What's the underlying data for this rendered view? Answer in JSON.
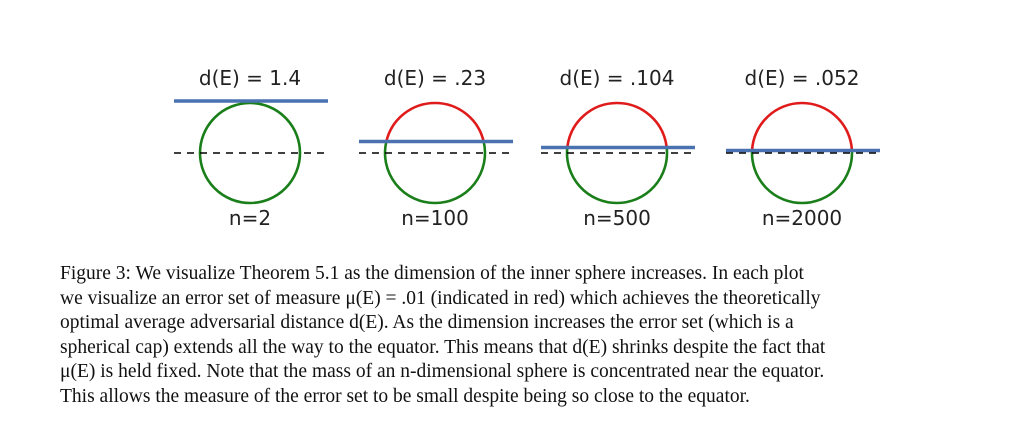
{
  "figure": {
    "panels": [
      {
        "title": "d(E) = 1.4",
        "label": "n=2",
        "cap_fraction": 0,
        "distance": 1.4
      },
      {
        "title": "d(E) = .23",
        "label": "n=100",
        "cap_fraction": 0.385,
        "distance": 0.23
      },
      {
        "title": "d(E) = .104",
        "label": "n=500",
        "cap_fraction": 0.445,
        "distance": 0.104
      },
      {
        "title": "d(E) = .052",
        "label": "n=2000",
        "cap_fraction": 0.475,
        "distance": 0.052
      }
    ],
    "colors": {
      "safe_arc": "#1a7f1a",
      "error_arc": "#e01b1b",
      "boundary": "#4a72b0",
      "equator": "#000000"
    }
  },
  "caption": {
    "lines": [
      "Figure 3: We visualize Theorem 5.1 as the dimension of the inner sphere increases. In each plot",
      "we visualize an error set of measure μ(E) = .01 (indicated in red) which achieves the theoretically",
      "optimal average adversarial distance d(E). As the dimension increases the error set (which is a",
      "spherical cap) extends all the way to the equator. This means that d(E) shrinks despite the fact that",
      "μ(E) is held fixed. Note that the mass of an n-dimensional sphere is concentrated near the equator.",
      "This allows the measure of the error set to be small despite being so close to the equator."
    ]
  }
}
